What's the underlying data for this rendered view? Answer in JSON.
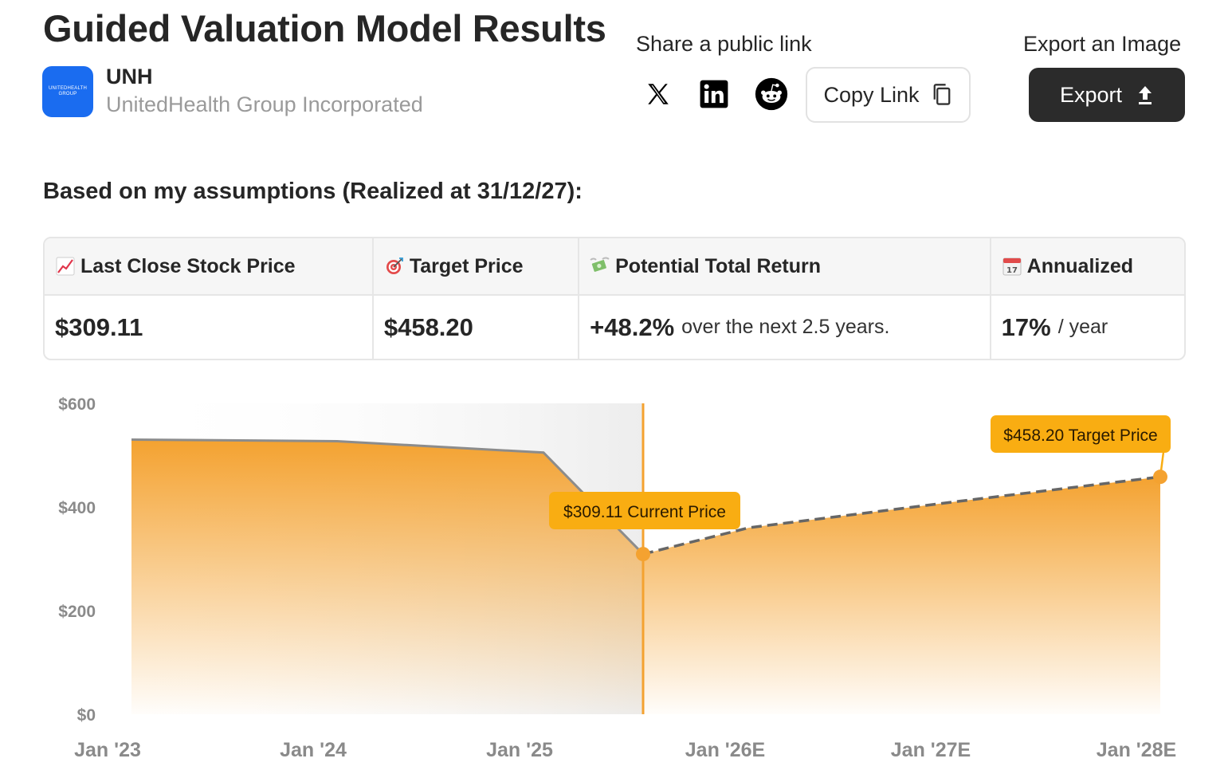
{
  "header": {
    "title": "Guided Valuation Model Results",
    "logo_text": "UNITEDHEALTH GROUP",
    "ticker": "UNH",
    "company_name": "UnitedHealth Group Incorporated"
  },
  "share": {
    "label": "Share a public link",
    "copy_label": "Copy Link"
  },
  "export": {
    "label": "Export an Image",
    "button_label": "Export"
  },
  "assumptions": "Based on my assumptions (Realized at 31/12/27):",
  "stats": [
    {
      "header": "Last Close Stock Price",
      "value": "$309.11",
      "suffix": ""
    },
    {
      "header": "Target Price",
      "value": "$458.20",
      "suffix": ""
    },
    {
      "header": "Potential Total Return",
      "value": "+48.2%",
      "suffix": "over the next 2.5 years."
    },
    {
      "header": "Annualized",
      "value": "17%",
      "suffix": "/ year"
    }
  ],
  "colors": {
    "accent": "#f4a230",
    "label_bg": "#f9ad12",
    "dark": "#2b2b2b",
    "logo": "#1a6cf0"
  },
  "chart_data": {
    "type": "area",
    "y_ticks": [
      "$600",
      "$400",
      "$200",
      "$0"
    ],
    "x_ticks": [
      "Jan '23",
      "Jan '24",
      "Jan '25",
      "Jan '26E",
      "Jan '27E",
      "Jan '28E"
    ],
    "ylim": [
      0,
      600
    ],
    "historical": {
      "x": [
        "Jan '23",
        "Jan '24",
        "Jan '25",
        "Current"
      ],
      "values": [
        530,
        527,
        505,
        309.11
      ]
    },
    "projected": {
      "x": [
        "Current",
        "Jan '26E",
        "Jan '27E",
        "Jan '28E"
      ],
      "values": [
        309.11,
        360,
        410,
        458.2
      ]
    },
    "annotations": [
      {
        "label": "$309.11 Current Price",
        "value": 309.11
      },
      {
        "label": "$458.20 Target Price",
        "value": 458.2
      }
    ]
  }
}
